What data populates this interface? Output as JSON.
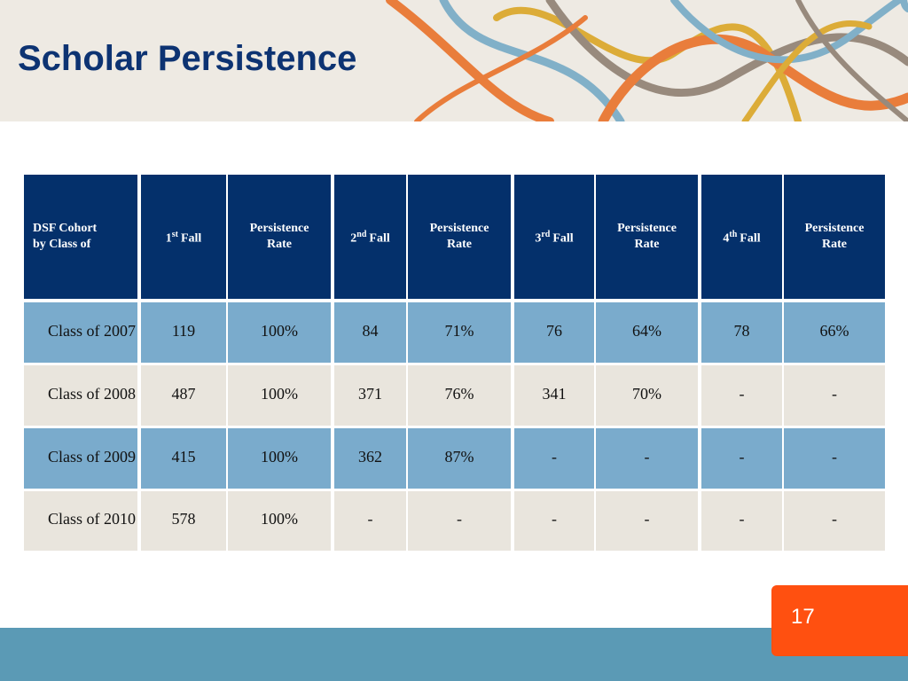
{
  "header": {
    "title": "Scholar Persistence"
  },
  "table": {
    "columns": [
      {
        "lines": [
          "DSF Cohort",
          "by Class of"
        ]
      },
      {
        "base": "1",
        "sup": "st",
        "rest": "Fall"
      },
      {
        "lines": [
          "Persistence",
          "Rate"
        ]
      },
      {
        "base": "2",
        "sup": "nd",
        "rest": "Fall"
      },
      {
        "lines": [
          "Persistence",
          "Rate"
        ]
      },
      {
        "base": "3",
        "sup": "rd",
        "rest": "Fall"
      },
      {
        "lines": [
          "Persistence",
          "Rate"
        ]
      },
      {
        "base": "4",
        "sup": "th",
        "rest": "Fall"
      },
      {
        "lines": [
          "Persistence",
          "Rate"
        ]
      }
    ],
    "rows": [
      [
        "Class of 2007",
        "119",
        "100%",
        "84",
        "71%",
        "76",
        "64%",
        "78",
        "66%"
      ],
      [
        "Class of 2008",
        "487",
        "100%",
        "371",
        "76%",
        "341",
        "70%",
        "-",
        "-"
      ],
      [
        "Class of 2009",
        "415",
        "100%",
        "362",
        "87%",
        "-",
        "-",
        "-",
        "-"
      ],
      [
        "Class of 2010",
        "578",
        "100%",
        "-",
        "-",
        "-",
        "-",
        "-",
        "-"
      ]
    ]
  },
  "footer": {
    "page_number": "17"
  }
}
